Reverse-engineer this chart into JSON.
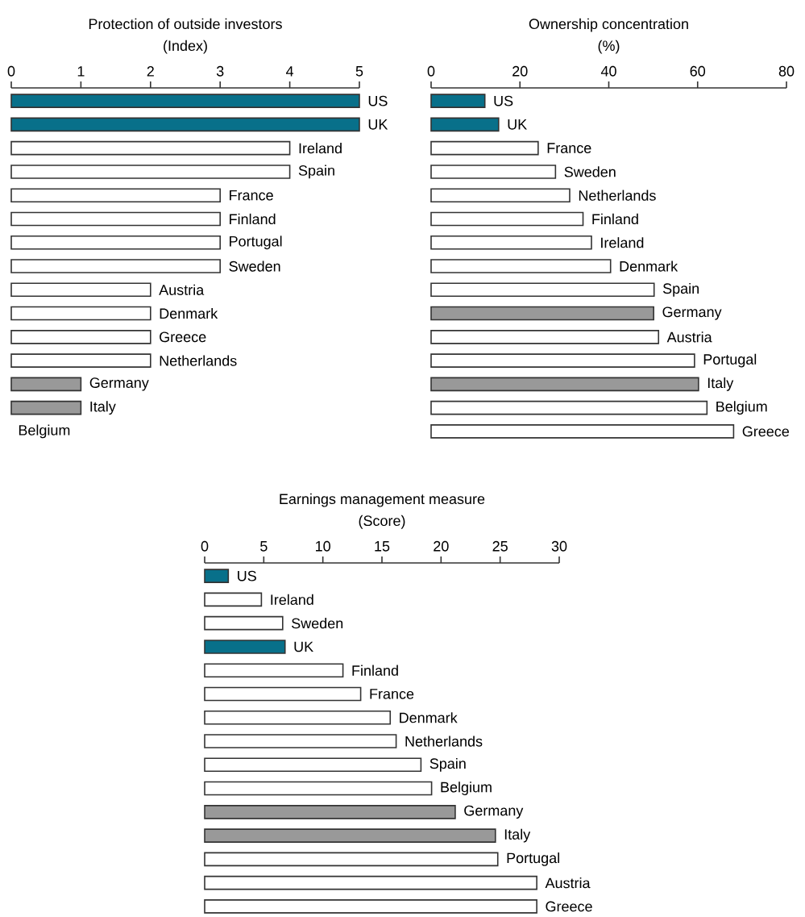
{
  "chart_data": [
    {
      "type": "bar",
      "orientation": "horizontal",
      "title": "Protection of outside investors",
      "subtitle": "(Index)",
      "categories": [
        "US",
        "UK",
        "Ireland",
        "Spain",
        "France",
        "Finland",
        "Portugal",
        "Sweden",
        "Austria",
        "Denmark",
        "Greece",
        "Netherlands",
        "Germany",
        "Italy",
        "Belgium"
      ],
      "values": [
        5,
        5,
        4,
        4,
        3,
        3,
        3,
        3,
        2,
        2,
        2,
        2,
        1,
        1,
        0
      ],
      "colors": [
        "#08708a",
        "#08708a",
        "#ffffff",
        "#ffffff",
        "#ffffff",
        "#ffffff",
        "#ffffff",
        "#ffffff",
        "#ffffff",
        "#ffffff",
        "#ffffff",
        "#ffffff",
        "#999999",
        "#999999",
        "#ffffff"
      ],
      "xlim": [
        0,
        5
      ],
      "xticks": [
        0,
        1,
        2,
        3,
        4,
        5
      ]
    },
    {
      "type": "bar",
      "orientation": "horizontal",
      "title": "Ownership concentration",
      "subtitle": "(%)",
      "categories": [
        "US",
        "UK",
        "France",
        "Sweden",
        "Netherlands",
        "Finland",
        "Ireland",
        "Denmark",
        "Spain",
        "Germany",
        "Austria",
        "Portugal",
        "Italy",
        "Belgium",
        "Greece"
      ],
      "values": [
        12.1,
        15.2,
        24.1,
        28,
        31.2,
        34.2,
        36.1,
        40.4,
        50.2,
        50.1,
        51.2,
        59.3,
        60.2,
        62.1,
        68.1
      ],
      "colors": [
        "#08708a",
        "#08708a",
        "#ffffff",
        "#ffffff",
        "#ffffff",
        "#ffffff",
        "#ffffff",
        "#ffffff",
        "#ffffff",
        "#999999",
        "#ffffff",
        "#ffffff",
        "#999999",
        "#ffffff",
        "#ffffff"
      ],
      "xlim": [
        0,
        80
      ],
      "xticks": [
        0,
        20,
        40,
        60,
        80
      ]
    },
    {
      "type": "bar",
      "orientation": "horizontal",
      "title": "Earnings management measure",
      "subtitle": "(Score)",
      "categories": [
        "US",
        "Ireland",
        "Sweden",
        "UK",
        "Finland",
        "France",
        "Denmark",
        "Netherlands",
        "Spain",
        "Belgium",
        "Germany",
        "Italy",
        "Portugal",
        "Austria",
        "Greece"
      ],
      "values": [
        2,
        4.8,
        6.6,
        6.8,
        11.7,
        13.2,
        15.7,
        16.2,
        18.3,
        19.2,
        21.2,
        24.6,
        24.8,
        28.1,
        28.1
      ],
      "colors": [
        "#08708a",
        "#ffffff",
        "#ffffff",
        "#08708a",
        "#ffffff",
        "#ffffff",
        "#ffffff",
        "#ffffff",
        "#ffffff",
        "#ffffff",
        "#999999",
        "#999999",
        "#ffffff",
        "#ffffff",
        "#ffffff"
      ],
      "xlim": [
        0,
        30
      ],
      "xticks": [
        0,
        5,
        10,
        15,
        20,
        25,
        30
      ]
    }
  ]
}
